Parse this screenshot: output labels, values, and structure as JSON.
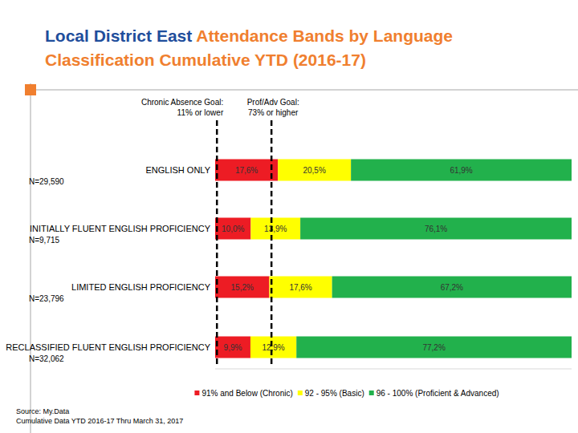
{
  "chart_data": {
    "type": "bar",
    "orientation": "horizontal",
    "stacked": true,
    "data_labels": true,
    "tick_labels": false,
    "legend": "bottom",
    "title": "Local District East Attendance Bands by Language Classification Cumulative YTD (2016-17)",
    "categories": [
      "ENGLISH ONLY",
      "INITIALLY FLUENT ENGLISH PROFICIENCY",
      "LIMITED ENGLISH PROFICIENCY",
      "RECLASSIFIED FLUENT ENGLISH PROFICIENCY"
    ],
    "sample_sizes": [
      "N=29,590",
      "N=9,715",
      "N=23,796",
      "N=32,062"
    ],
    "xlim": [
      0,
      100
    ],
    "series": [
      {
        "name": "91% and Below (Chronic)",
        "color": "#ed1c24",
        "values": [
          17.6,
          10.0,
          15.2,
          9.9
        ],
        "value_labels": [
          "17,6%",
          "10,0%",
          "15,2%",
          "9,9%"
        ]
      },
      {
        "name": "92 - 95% (Basic)",
        "color": "#ffff00",
        "values": [
          20.5,
          13.9,
          17.6,
          12.9
        ],
        "value_labels": [
          "20,5%",
          "13,9%",
          "17,6%",
          "12,9%"
        ]
      },
      {
        "name": "96 - 100% (Proficient & Advanced)",
        "color": "#22b14c",
        "values": [
          61.9,
          76.1,
          67.2,
          77.2
        ],
        "value_labels": [
          "61,9%",
          "76,1%",
          "67,2%",
          "77,2%"
        ]
      }
    ],
    "annotations": [
      {
        "text": [
          "Chronic Absence Goal:",
          "11% or lower"
        ],
        "x": 0.5,
        "line_style": "dashed"
      },
      {
        "text": [
          "Prof/Adv Goal:",
          "73% or higher"
        ],
        "x": 15.8,
        "line_style": "dashed"
      }
    ],
    "source": [
      "Source: My.Data",
      "Cumulative Data YTD 2016-17 Thru March 31, 2017"
    ]
  }
}
